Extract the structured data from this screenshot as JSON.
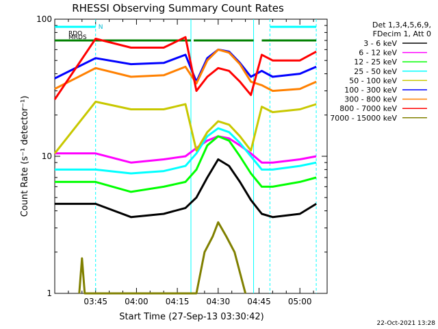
{
  "chart_data": {
    "type": "line",
    "title": "RHESSI Observing Summary Count Rates",
    "xlabel": "Start Time (27-Sep-13 03:30:42)",
    "ylabel": "Count Rate (s⁻¹ detector⁻¹)",
    "y_scale": "log",
    "ylim": [
      1,
      100
    ],
    "xlim": [
      "03:30",
      "05:10"
    ],
    "x_ticks": [
      "03:45",
      "04:00",
      "04:15",
      "04:30",
      "04:45",
      "05:00"
    ],
    "y_ticks": [
      {
        "value": 1,
        "label": "1"
      },
      {
        "value": 10,
        "label": "10"
      },
      {
        "value": 100,
        "label": "100"
      }
    ],
    "legend_header": [
      "Det 1,3,4,5,6,9,",
      "FDecim 1, Att 0"
    ],
    "legend_position": "right",
    "flag_bars": [
      {
        "label": "N",
        "color": "#00ffff",
        "segments": [
          [
            "03:30",
            "03:45"
          ],
          [
            "04:49",
            "05:06"
          ]
        ],
        "level": 88
      },
      {
        "label": "RDO",
        "color": "#ff9999",
        "segments": [],
        "level": 79
      },
      {
        "label": "MRDS",
        "color": "#ff9999",
        "segments": [],
        "level": 74
      },
      {
        "label": "",
        "color": "#008000",
        "segments": [
          [
            "03:30",
            "04:20"
          ],
          [
            "04:21",
            "04:43"
          ],
          [
            "04:46",
            "05:06"
          ]
        ],
        "level": 70
      }
    ],
    "night_lines": [
      "03:45",
      "04:49",
      "05:06"
    ],
    "day_lines": [
      "04:20",
      "04:43"
    ],
    "annotation_date": "22-Oct-2021 13:28",
    "series": [
      {
        "name": "3 - 6 keV",
        "color": "#000000",
        "points": [
          [
            "03:30",
            4.5
          ],
          [
            "03:45",
            4.5
          ],
          [
            "03:58",
            3.6
          ],
          [
            "04:10",
            3.8
          ],
          [
            "04:18",
            4.2
          ],
          [
            "04:22",
            5.0
          ],
          [
            "04:26",
            7.0
          ],
          [
            "04:30",
            9.5
          ],
          [
            "04:34",
            8.5
          ],
          [
            "04:38",
            6.5
          ],
          [
            "04:42",
            4.8
          ],
          [
            "04:46",
            3.8
          ],
          [
            "04:50",
            3.6
          ],
          [
            "05:00",
            3.8
          ],
          [
            "05:06",
            4.5
          ]
        ]
      },
      {
        "name": "6 - 12 keV",
        "color": "#ff00ff",
        "points": [
          [
            "03:30",
            10.5
          ],
          [
            "03:45",
            10.5
          ],
          [
            "03:58",
            9.0
          ],
          [
            "04:10",
            9.5
          ],
          [
            "04:18",
            10.0
          ],
          [
            "04:22",
            11.5
          ],
          [
            "04:26",
            13.0
          ],
          [
            "04:30",
            14.0
          ],
          [
            "04:34",
            13.5
          ],
          [
            "04:38",
            12.0
          ],
          [
            "04:42",
            10.5
          ],
          [
            "04:46",
            9.0
          ],
          [
            "04:50",
            9.0
          ],
          [
            "05:00",
            9.5
          ],
          [
            "05:06",
            10.0
          ]
        ]
      },
      {
        "name": "12 - 25 keV",
        "color": "#00ff00",
        "points": [
          [
            "03:30",
            6.5
          ],
          [
            "03:45",
            6.5
          ],
          [
            "03:58",
            5.5
          ],
          [
            "04:10",
            6.0
          ],
          [
            "04:18",
            6.5
          ],
          [
            "04:22",
            8.0
          ],
          [
            "04:26",
            12.0
          ],
          [
            "04:30",
            14.0
          ],
          [
            "04:34",
            13.0
          ],
          [
            "04:38",
            10.0
          ],
          [
            "04:42",
            7.5
          ],
          [
            "04:46",
            6.0
          ],
          [
            "04:50",
            6.0
          ],
          [
            "05:00",
            6.5
          ],
          [
            "05:06",
            7.0
          ]
        ]
      },
      {
        "name": "25 - 50 keV",
        "color": "#00ffff",
        "points": [
          [
            "03:30",
            8.0
          ],
          [
            "03:45",
            8.0
          ],
          [
            "03:58",
            7.5
          ],
          [
            "04:10",
            7.8
          ],
          [
            "04:18",
            8.5
          ],
          [
            "04:22",
            10.5
          ],
          [
            "04:26",
            14.0
          ],
          [
            "04:30",
            16.0
          ],
          [
            "04:34",
            15.0
          ],
          [
            "04:38",
            12.5
          ],
          [
            "04:42",
            10.0
          ],
          [
            "04:46",
            8.0
          ],
          [
            "04:50",
            8.0
          ],
          [
            "05:00",
            8.5
          ],
          [
            "05:06",
            9.0
          ]
        ]
      },
      {
        "name": "50 - 100 keV",
        "color": "#c8c800",
        "points": [
          [
            "03:30",
            10.5
          ],
          [
            "03:45",
            25
          ],
          [
            "03:58",
            22
          ],
          [
            "04:10",
            22
          ],
          [
            "04:18",
            24
          ],
          [
            "04:22",
            11
          ],
          [
            "04:26",
            15
          ],
          [
            "04:30",
            18
          ],
          [
            "04:34",
            17
          ],
          [
            "04:38",
            14
          ],
          [
            "04:42",
            11
          ],
          [
            "04:46",
            23
          ],
          [
            "04:50",
            21
          ],
          [
            "05:00",
            22
          ],
          [
            "05:06",
            24
          ]
        ]
      },
      {
        "name": "100 - 300 keV",
        "color": "#0000ff",
        "points": [
          [
            "03:30",
            37
          ],
          [
            "03:45",
            52
          ],
          [
            "03:58",
            47
          ],
          [
            "04:10",
            48
          ],
          [
            "04:18",
            55
          ],
          [
            "04:22",
            35
          ],
          [
            "04:26",
            52
          ],
          [
            "04:30",
            60
          ],
          [
            "04:34",
            58
          ],
          [
            "04:38",
            48
          ],
          [
            "04:42",
            38
          ],
          [
            "04:46",
            42
          ],
          [
            "04:50",
            38
          ],
          [
            "05:00",
            40
          ],
          [
            "05:06",
            45
          ]
        ]
      },
      {
        "name": "300 - 800 keV",
        "color": "#ff8000",
        "points": [
          [
            "03:30",
            31
          ],
          [
            "03:45",
            44
          ],
          [
            "03:58",
            38
          ],
          [
            "04:10",
            39
          ],
          [
            "04:18",
            45
          ],
          [
            "04:22",
            34
          ],
          [
            "04:26",
            50
          ],
          [
            "04:30",
            60
          ],
          [
            "04:34",
            57
          ],
          [
            "04:38",
            47
          ],
          [
            "04:42",
            35
          ],
          [
            "04:46",
            33
          ],
          [
            "04:50",
            30
          ],
          [
            "05:00",
            31
          ],
          [
            "05:06",
            35
          ]
        ]
      },
      {
        "name": "800 - 7000 keV",
        "color": "#ff0000",
        "points": [
          [
            "03:30",
            26
          ],
          [
            "03:45",
            72
          ],
          [
            "03:58",
            62
          ],
          [
            "04:10",
            62
          ],
          [
            "04:18",
            74
          ],
          [
            "04:22",
            30
          ],
          [
            "04:26",
            38
          ],
          [
            "04:30",
            44
          ],
          [
            "04:34",
            42
          ],
          [
            "04:38",
            35
          ],
          [
            "04:42",
            28
          ],
          [
            "04:46",
            55
          ],
          [
            "04:50",
            50
          ],
          [
            "05:00",
            50
          ],
          [
            "05:06",
            58
          ]
        ]
      },
      {
        "name": "7000 - 15000 keV",
        "color": "#808000",
        "points": [
          [
            "03:39",
            1.0
          ],
          [
            "03:40",
            1.8
          ],
          [
            "03:41",
            1.0
          ],
          [
            "04:22",
            1.0
          ],
          [
            "04:25",
            2.0
          ],
          [
            "04:28",
            2.6
          ],
          [
            "04:30",
            3.3
          ],
          [
            "04:33",
            2.6
          ],
          [
            "04:36",
            2.0
          ],
          [
            "04:40",
            1.0
          ]
        ]
      }
    ]
  }
}
